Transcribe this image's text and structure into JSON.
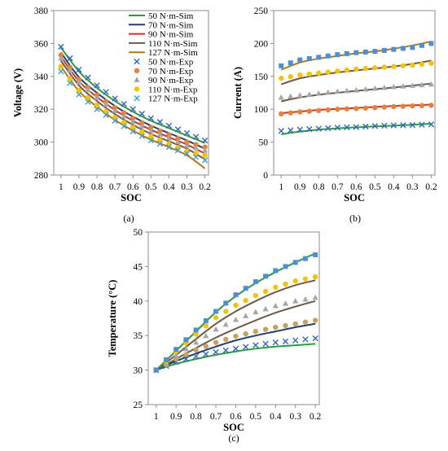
{
  "chart_data": [
    {
      "type": "line",
      "panel_label": "(a)",
      "xlabel": "SOC",
      "ylabel": "Voltage (V)",
      "x_ticks": [
        "1",
        "0.9",
        "0.8",
        "0.7",
        "0.6",
        "0.5",
        "0.4",
        "0.3",
        "0.2"
      ],
      "y_ticks": [
        "280",
        "300",
        "320",
        "340",
        "360",
        "380"
      ],
      "xlim": [
        1.04,
        0.18
      ],
      "ylim": [
        280,
        380
      ],
      "grid": false,
      "legend_position": "top-right",
      "legend": [
        {
          "label": "50 N·m-Sim",
          "color": "#2e9b3b",
          "kind": "line"
        },
        {
          "label": "70 N·m-Sim",
          "color": "#1f3f73",
          "kind": "line"
        },
        {
          "label": "90 N·m-Sim",
          "color": "#c0392b",
          "kind": "line"
        },
        {
          "label": "110 N·m-Sim",
          "color": "#6e5a4a",
          "kind": "line"
        },
        {
          "label": "127 N·m-Sim",
          "color": "#b5780a",
          "kind": "line"
        },
        {
          "label": "50 N·m-Exp",
          "color": "#2f67c3",
          "kind": "x"
        },
        {
          "label": "70 N·m-Exp",
          "color": "#e8803a",
          "kind": "circle"
        },
        {
          "label": "90 N·m-Exp",
          "color": "#a6a6a6",
          "kind": "triangle"
        },
        {
          "label": "110 N·m-Exp",
          "color": "#f5c400",
          "kind": "circle"
        },
        {
          "label": "127 N·m-Exp",
          "color": "#3a9fd6",
          "kind": "x"
        }
      ],
      "x": [
        1.0,
        0.9,
        0.8,
        0.7,
        0.6,
        0.5,
        0.4,
        0.3,
        0.2
      ],
      "series": [
        {
          "kind": "line",
          "color": "#2e9b3b",
          "values": [
            357.5,
            343,
            333,
            325,
            318.5,
            313,
            308.5,
            304,
            299.5
          ]
        },
        {
          "kind": "line",
          "color": "#1f3f73",
          "values": [
            354.5,
            339.5,
            330,
            322,
            315.5,
            310,
            305.5,
            301,
            296
          ]
        },
        {
          "kind": "line",
          "color": "#c0392b",
          "values": [
            352,
            337,
            327.5,
            319.5,
            313,
            307.5,
            303,
            298.5,
            293
          ]
        },
        {
          "kind": "line",
          "color": "#6e5a4a",
          "values": [
            349.5,
            334.5,
            325,
            317,
            310.5,
            305,
            300.5,
            296,
            289.5
          ]
        },
        {
          "kind": "line",
          "color": "#b5780a",
          "values": [
            346,
            331,
            321.5,
            313.5,
            307,
            301.5,
            297,
            292,
            284
          ]
        },
        {
          "kind": "x",
          "color": "#2f67c3",
          "values": [
            358,
            344,
            334.5,
            326.5,
            320,
            314.5,
            310,
            305.5,
            301
          ]
        },
        {
          "kind": "circle",
          "color": "#e8803a",
          "values": [
            353,
            338,
            328.5,
            321,
            314.5,
            309,
            304.5,
            300,
            297
          ]
        },
        {
          "kind": "triangle",
          "color": "#a6a6a6",
          "values": [
            351,
            336.5,
            327,
            319,
            312.5,
            307,
            302.5,
            298,
            295
          ]
        },
        {
          "kind": "circle",
          "color": "#f5c400",
          "values": [
            346,
            331.5,
            322.5,
            315,
            309,
            303.5,
            299,
            294.5,
            292
          ]
        },
        {
          "kind": "x",
          "color": "#3a9fd6",
          "values": [
            343,
            329,
            320,
            313,
            306.5,
            301,
            297,
            293,
            289
          ]
        }
      ]
    },
    {
      "type": "line",
      "panel_label": "(b)",
      "xlabel": "SOC",
      "ylabel": "Current (A)",
      "x_ticks": [
        "1",
        "0.9",
        "0.8",
        "0.7",
        "0.6",
        "0.5",
        "0.4",
        "0.3",
        "0.2"
      ],
      "y_ticks": [
        "0",
        "50",
        "100",
        "150",
        "200",
        "250"
      ],
      "xlim": [
        1.04,
        0.18
      ],
      "ylim": [
        0,
        250
      ],
      "grid": false,
      "x": [
        1.0,
        0.9,
        0.8,
        0.7,
        0.6,
        0.5,
        0.4,
        0.3,
        0.2
      ],
      "series": [
        {
          "kind": "line",
          "color": "#2e9b3b",
          "values": [
            62,
            66,
            69,
            71,
            72.5,
            74,
            75,
            76.5,
            78
          ]
        },
        {
          "kind": "line",
          "color": "#c0392b",
          "values": [
            94,
            96.5,
            99,
            100.5,
            102,
            103.5,
            105,
            106,
            107
          ]
        },
        {
          "kind": "line",
          "color": "#6e5a4a",
          "values": [
            112,
            118,
            122,
            125,
            128,
            130.5,
            133,
            136,
            139
          ]
        },
        {
          "kind": "line",
          "color": "#6e5a4a",
          "values": [
            138,
            147,
            152,
            156,
            159,
            162,
            165,
            169,
            174
          ]
        },
        {
          "kind": "line",
          "color": "#b5780a",
          "values": [
            160,
            171,
            177,
            181,
            185,
            188,
            192,
            197,
            203
          ]
        },
        {
          "kind": "x",
          "color": "#2f67c3",
          "values": [
            67,
            69,
            70.5,
            72,
            73,
            74.5,
            75.5,
            76,
            77
          ]
        },
        {
          "kind": "circle",
          "color": "#e8803a",
          "values": [
            93,
            96,
            98,
            100,
            101,
            102.5,
            104,
            105,
            106
          ]
        },
        {
          "kind": "triangle",
          "color": "#a6a6a6",
          "values": [
            118,
            121,
            124,
            127,
            129,
            131.5,
            134,
            136,
            138
          ]
        },
        {
          "kind": "circle",
          "color": "#f5c400",
          "values": [
            147,
            152,
            155,
            158,
            161,
            163,
            165,
            167,
            170
          ]
        },
        {
          "kind": "square",
          "color": "#4a90d9",
          "values": [
            166,
            175,
            179,
            183,
            186,
            188,
            191,
            194,
            200
          ]
        }
      ]
    },
    {
      "type": "line",
      "panel_label": "(c)",
      "xlabel": "SOC",
      "ylabel": "Temperature (°C)",
      "x_ticks": [
        "1",
        "0.9",
        "0.8",
        "0.7",
        "0.6",
        "0.5",
        "0.4",
        "0.3",
        "0.2"
      ],
      "y_ticks": [
        "25",
        "30",
        "35",
        "40",
        "45",
        "50"
      ],
      "xlim": [
        1.04,
        0.18
      ],
      "ylim": [
        25,
        50
      ],
      "grid": false,
      "x": [
        1.0,
        0.9,
        0.8,
        0.7,
        0.6,
        0.5,
        0.4,
        0.3,
        0.2
      ],
      "series": [
        {
          "kind": "line",
          "color": "#2e9b3b",
          "values": [
            30,
            30.9,
            31.6,
            32.2,
            32.7,
            33.1,
            33.4,
            33.6,
            33.8
          ]
        },
        {
          "kind": "line",
          "color": "#1f3f73",
          "values": [
            30,
            31.3,
            32.4,
            33.4,
            34.3,
            35.0,
            35.6,
            36.2,
            36.7
          ]
        },
        {
          "kind": "line",
          "color": "#6e5a4a",
          "values": [
            30,
            31.6,
            33.2,
            34.7,
            36.0,
            37.2,
            38.3,
            39.2,
            40.0
          ]
        },
        {
          "kind": "line",
          "color": "#6e5a4a",
          "values": [
            30,
            32.2,
            34.5,
            36.7,
            38.5,
            40.0,
            41.3,
            42.3,
            43.0
          ]
        },
        {
          "kind": "line",
          "color": "#2e9b3b",
          "values": [
            30,
            32.8,
            35.6,
            38.4,
            40.7,
            42.6,
            44.2,
            45.6,
            46.9
          ]
        },
        {
          "kind": "x",
          "color": "#2f67c3",
          "values": [
            30,
            31.2,
            32.0,
            32.6,
            33.1,
            33.6,
            34.0,
            34.3,
            34.6
          ]
        },
        {
          "kind": "circle",
          "color": "#c7a25a",
          "values": [
            30,
            31.6,
            32.9,
            34.0,
            34.9,
            35.6,
            36.2,
            36.7,
            37.2
          ]
        },
        {
          "kind": "triangle",
          "color": "#a6a6a6",
          "values": [
            30,
            32.1,
            34.0,
            35.9,
            37.3,
            38.4,
            39.3,
            40.0,
            40.5
          ]
        },
        {
          "kind": "circle",
          "color": "#f5c400",
          "values": [
            30,
            32.7,
            35.2,
            37.6,
            39.4,
            40.8,
            42.0,
            42.9,
            43.5
          ]
        },
        {
          "kind": "square",
          "color": "#4a90d9",
          "values": [
            30,
            33.0,
            35.8,
            38.5,
            40.9,
            42.8,
            44.4,
            45.6,
            46.7
          ]
        }
      ]
    }
  ]
}
